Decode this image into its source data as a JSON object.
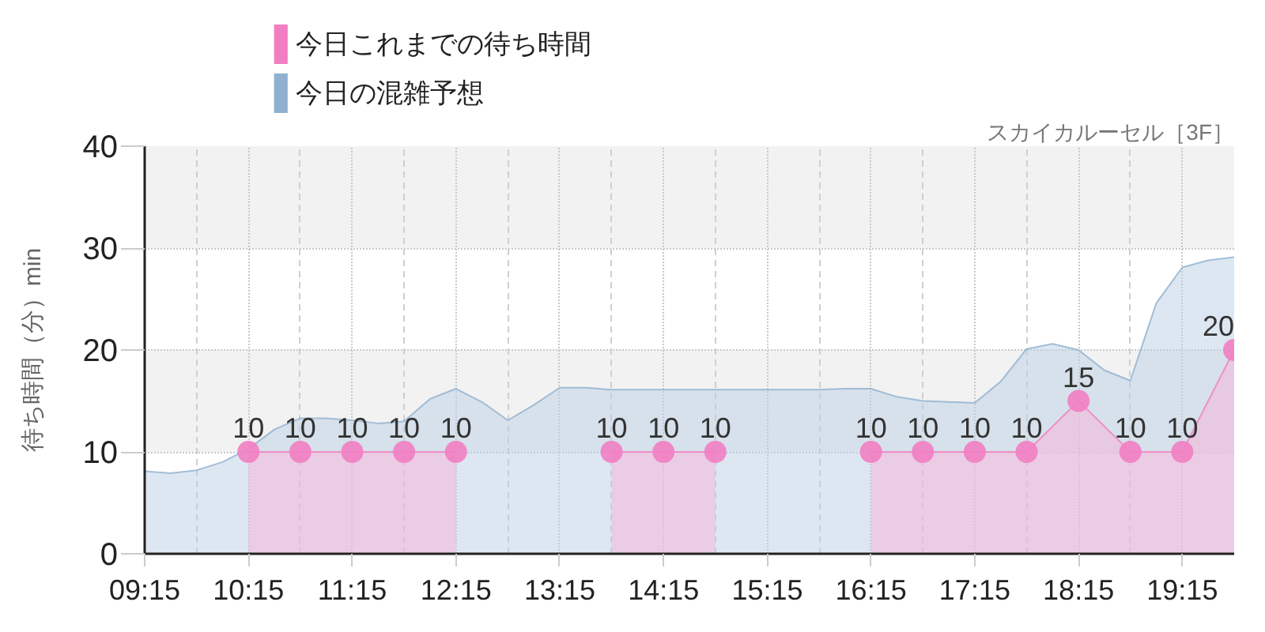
{
  "chart_data": {
    "type": "area",
    "subtitle": "スカイカルーセル［3F］",
    "ylabel": "待ち時間（分）min",
    "xlim": [
      9.25,
      19.75
    ],
    "xticks": [
      {
        "value": 9.25,
        "label": "09:15"
      },
      {
        "value": 10.25,
        "label": "10:15"
      },
      {
        "value": 11.25,
        "label": "11:15"
      },
      {
        "value": 12.25,
        "label": "12:15"
      },
      {
        "value": 13.25,
        "label": "13:15"
      },
      {
        "value": 14.25,
        "label": "14:15"
      },
      {
        "value": 15.25,
        "label": "15:15"
      },
      {
        "value": 16.25,
        "label": "16:15"
      },
      {
        "value": 17.25,
        "label": "17:15"
      },
      {
        "value": 18.25,
        "label": "18:15"
      },
      {
        "value": 19.25,
        "label": "19:15"
      }
    ],
    "ylim": [
      0,
      40
    ],
    "yticks": [
      0,
      10,
      20,
      30,
      40
    ],
    "grid": true,
    "legend": "top left",
    "bands": [
      {
        "axis": "y",
        "from": 10,
        "to": 20,
        "color": "#f2f2f2"
      },
      {
        "axis": "y",
        "from": 30,
        "to": 40,
        "color": "#f2f2f2"
      }
    ],
    "series": [
      {
        "name": "今日これまでの待ち時間",
        "color": "#f27ec2",
        "marker": "circle",
        "x": [
          10.25,
          10.75,
          11.25,
          11.75,
          12.25,
          12.75,
          13.25,
          13.75,
          14.25,
          14.75,
          15.25,
          15.75,
          16.25,
          16.75,
          17.25,
          17.75,
          18.25,
          18.75,
          19.25,
          19.75
        ],
        "values": [
          10,
          10,
          10,
          10,
          10,
          null,
          null,
          10,
          10,
          10,
          null,
          null,
          10,
          10,
          10,
          10,
          15,
          10,
          10,
          20
        ],
        "value_labels": [
          "10",
          "10",
          "10",
          "10",
          "10",
          null,
          null,
          "10",
          "10",
          "10",
          null,
          null,
          "10",
          "10",
          "10",
          "10",
          "15",
          "10",
          "10",
          "20"
        ]
      },
      {
        "name": "今日の混雑予想",
        "color": "#8fb0d0",
        "marker": "none",
        "x": [
          9.25,
          9.5,
          9.75,
          10.0,
          10.25,
          10.5,
          10.75,
          11.0,
          11.25,
          11.5,
          11.75,
          12.0,
          12.25,
          12.5,
          12.75,
          13.0,
          13.25,
          13.5,
          13.75,
          14.0,
          14.25,
          14.5,
          14.75,
          15.0,
          15.25,
          15.5,
          15.75,
          16.0,
          16.25,
          16.5,
          16.75,
          17.0,
          17.25,
          17.5,
          17.75,
          18.0,
          18.25,
          18.5,
          18.75,
          19.0,
          19.25,
          19.5,
          19.75
        ],
        "values": [
          8.1,
          7.9,
          8.2,
          9.0,
          10.3,
          12.2,
          13.3,
          13.3,
          13.1,
          12.8,
          13.0,
          15.2,
          16.2,
          14.9,
          13.1,
          14.6,
          16.3,
          16.3,
          16.1,
          16.1,
          16.1,
          16.1,
          16.1,
          16.1,
          16.1,
          16.1,
          16.1,
          16.2,
          16.2,
          15.4,
          15.0,
          14.9,
          14.8,
          16.9,
          20.1,
          20.6,
          20.0,
          18.0,
          17.0,
          24.6,
          28.1,
          28.8,
          29.1
        ]
      }
    ]
  }
}
